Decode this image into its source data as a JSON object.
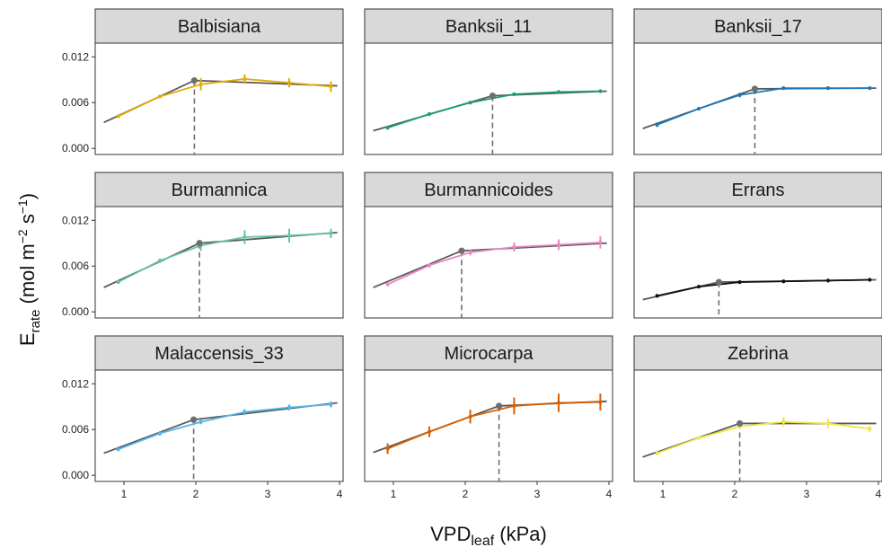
{
  "chart_data": {
    "type": "line",
    "layout": "facet-grid 3x3",
    "xlabel": {
      "main": "VPD",
      "sub": "leaf",
      "unit": " (kPa)"
    },
    "ylabel": {
      "main": "E",
      "sub": "rate",
      "unit_pre": " (mol m",
      "exp1": "−2",
      "unit_mid": " s",
      "exp2": "−1",
      "unit_post": ")"
    },
    "xlim": [
      0.6,
      4.05
    ],
    "ylim": [
      -0.0008,
      0.0138
    ],
    "xticks": [
      1,
      2,
      3,
      4
    ],
    "xtick_labels": [
      "1",
      "2",
      "3",
      "4"
    ],
    "yticks": [
      0.0,
      0.006,
      0.012
    ],
    "ytick_labels": [
      "0.000",
      "0.006",
      "0.012"
    ],
    "fit_color": "#595959",
    "breakpoint_color": "#6e6e6e",
    "panels": [
      {
        "name": "Balbisiana",
        "color": "#E6AB02",
        "fit": {
          "x0": 0.72,
          "y0": 0.0034,
          "bx": 1.98,
          "by": 0.0089,
          "x1": 3.97,
          "y1": 0.0082
        },
        "obs": {
          "x": [
            0.92,
            1.5,
            2.07,
            2.68,
            3.3,
            3.88
          ],
          "y": [
            0.0042,
            0.0068,
            0.0084,
            0.0091,
            0.0086,
            0.0081
          ],
          "err": [
            0.0001,
            0.0001,
            0.0008,
            0.0006,
            0.0006,
            0.0007
          ]
        }
      },
      {
        "name": "Banksii_11",
        "color": "#1B9E77",
        "fit": {
          "x0": 0.72,
          "y0": 0.0023,
          "bx": 2.38,
          "by": 0.0069,
          "x1": 3.97,
          "y1": 0.0075
        },
        "obs": {
          "x": [
            0.92,
            1.5,
            2.07,
            2.68,
            3.3,
            3.88
          ],
          "y": [
            0.0027,
            0.0045,
            0.006,
            0.0071,
            0.0074,
            0.0075
          ],
          "err": [
            0.0002,
            0.0002,
            0.0002,
            0.0002,
            0.0002,
            0.0002
          ]
        }
      },
      {
        "name": "Banksii_17",
        "color": "#1F78B4",
        "fit": {
          "x0": 0.72,
          "y0": 0.0026,
          "bx": 2.28,
          "by": 0.0078,
          "x1": 3.97,
          "y1": 0.0079
        },
        "obs": {
          "x": [
            0.92,
            1.5,
            2.07,
            2.68,
            3.3,
            3.88
          ],
          "y": [
            0.0031,
            0.0052,
            0.007,
            0.0079,
            0.0079,
            0.0079
          ],
          "err": [
            0.0003,
            0.0002,
            0.0003,
            0.0002,
            0.0002,
            0.0002
          ]
        }
      },
      {
        "name": "Burmannica",
        "color": "#66C2A5",
        "fit": {
          "x0": 0.72,
          "y0": 0.0032,
          "bx": 2.05,
          "by": 0.009,
          "x1": 3.97,
          "y1": 0.0104
        },
        "obs": {
          "x": [
            0.92,
            1.5,
            2.07,
            2.68,
            3.3,
            3.88
          ],
          "y": [
            0.0039,
            0.0067,
            0.0087,
            0.0098,
            0.01,
            0.0103
          ],
          "err": [
            0.0002,
            0.0003,
            0.0007,
            0.0009,
            0.0009,
            0.0006
          ]
        }
      },
      {
        "name": "Burmannicoides",
        "color": "#E78AC3",
        "fit": {
          "x0": 0.72,
          "y0": 0.0032,
          "bx": 1.95,
          "by": 0.008,
          "x1": 3.97,
          "y1": 0.009
        },
        "obs": {
          "x": [
            0.92,
            1.5,
            2.07,
            2.68,
            3.3,
            3.88
          ],
          "y": [
            0.0036,
            0.0061,
            0.0078,
            0.0085,
            0.0088,
            0.0091
          ],
          "err": [
            0.0002,
            0.0003,
            0.0004,
            0.0006,
            0.0007,
            0.0008
          ]
        }
      },
      {
        "name": "Errans",
        "color": "#111111",
        "fit": {
          "x0": 0.72,
          "y0": 0.0016,
          "bx": 1.78,
          "by": 0.0039,
          "x1": 3.97,
          "y1": 0.0042
        },
        "obs": {
          "x": [
            0.92,
            1.5,
            2.07,
            2.68,
            3.3,
            3.88
          ],
          "y": [
            0.0021,
            0.0033,
            0.0039,
            0.004,
            0.0041,
            0.0042
          ],
          "err": [
            0.0001,
            0.0001,
            0.0001,
            0.0001,
            0.0001,
            0.0001
          ]
        }
      },
      {
        "name": "Malaccensis_33",
        "color": "#56B4E9",
        "fit": {
          "x0": 0.72,
          "y0": 0.0029,
          "bx": 1.97,
          "by": 0.0073,
          "x1": 3.97,
          "y1": 0.0095
        },
        "obs": {
          "x": [
            0.92,
            1.5,
            2.07,
            2.68,
            3.3,
            3.88
          ],
          "y": [
            0.0034,
            0.0055,
            0.007,
            0.0083,
            0.0089,
            0.0093
          ],
          "err": [
            0.0002,
            0.0003,
            0.0003,
            0.0004,
            0.0004,
            0.0004
          ]
        }
      },
      {
        "name": "Microcarpa",
        "color": "#D95F02",
        "fit": {
          "x0": 0.72,
          "y0": 0.003,
          "bx": 2.47,
          "by": 0.0091,
          "x1": 3.97,
          "y1": 0.0097
        },
        "obs": {
          "x": [
            0.92,
            1.5,
            2.07,
            2.68,
            3.3,
            3.88
          ],
          "y": [
            0.0035,
            0.0057,
            0.0077,
            0.0091,
            0.0095,
            0.0096
          ],
          "err": [
            0.0007,
            0.0007,
            0.0009,
            0.0011,
            0.0012,
            0.0011
          ]
        }
      },
      {
        "name": "Zebrina",
        "color": "#F0E442",
        "fit": {
          "x0": 0.72,
          "y0": 0.0024,
          "bx": 2.07,
          "by": 0.0068,
          "x1": 3.97,
          "y1": 0.0068
        },
        "obs": {
          "x": [
            0.92,
            1.5,
            2.07,
            2.68,
            3.3,
            3.88
          ],
          "y": [
            0.0029,
            0.0049,
            0.0064,
            0.007,
            0.0068,
            0.0061
          ],
          "err": [
            0.0002,
            0.0002,
            0.0003,
            0.0006,
            0.0006,
            0.0004
          ]
        }
      }
    ]
  }
}
